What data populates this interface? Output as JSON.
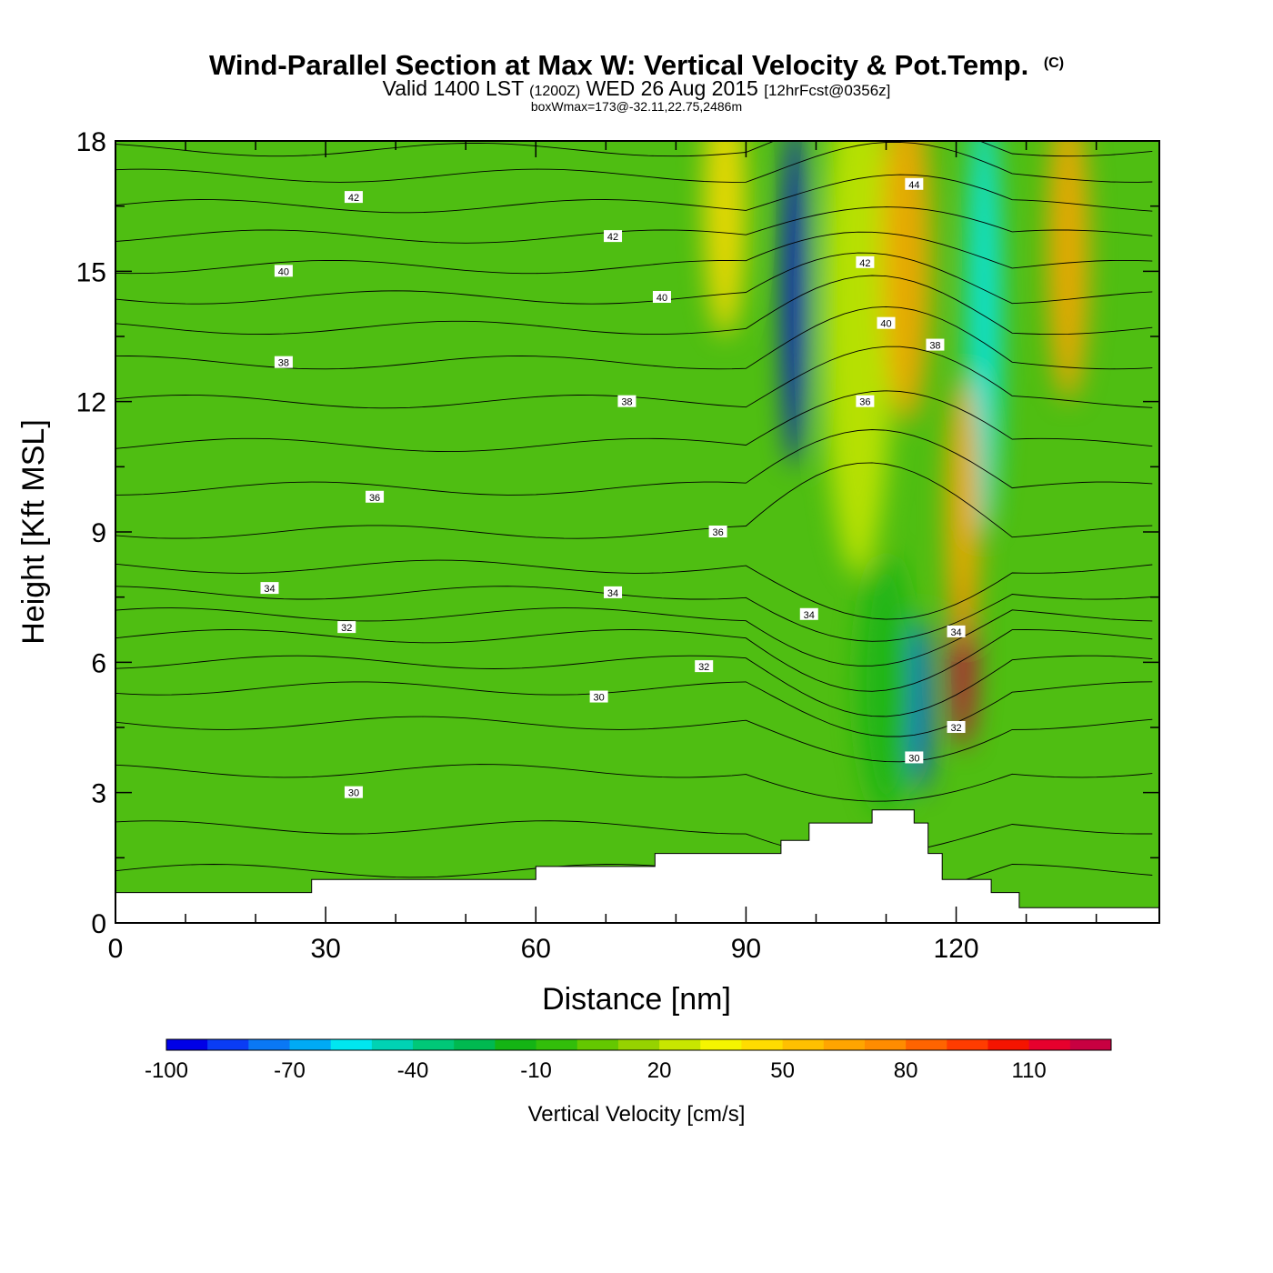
{
  "chart_data": {
    "type": "heatmap",
    "title": {
      "main": "Wind-Parallel Section at Max W: Vertical Velocity & Pot.Temp.",
      "copyright": "(C)",
      "valid_prefix": "Valid 1400 LST",
      "valid_zulu": "(1200Z)",
      "valid_date": "WED 26 Aug 2015",
      "forecast": "[12hrFcst@0356z]",
      "boxwmax": "boxWmax=173@-32.11,22.75,2486m"
    },
    "xlabel": "Distance [nm]",
    "ylabel": "Height [Kft MSL]",
    "xlim": [
      0,
      149
    ],
    "ylim": [
      0,
      18
    ],
    "x_ticks": [
      0,
      30,
      60,
      90,
      120
    ],
    "x_tick_labels": [
      "0",
      "30",
      "60",
      "90",
      "120"
    ],
    "y_ticks": [
      0,
      3,
      6,
      9,
      12,
      15,
      18
    ],
    "y_tick_labels": [
      "0",
      "3",
      "6",
      "9",
      "12",
      "15",
      "18"
    ],
    "colorbar": {
      "label": "Vertical Velocity [cm/s]",
      "levels": [
        -100,
        -90,
        -80,
        -70,
        -60,
        -50,
        -40,
        -30,
        -20,
        -10,
        0,
        10,
        20,
        30,
        40,
        50,
        60,
        70,
        80,
        90,
        100,
        110,
        120,
        130
      ],
      "tick_values": [
        -100,
        -70,
        -40,
        -10,
        20,
        50,
        80,
        110
      ],
      "tick_labels": [
        "-100",
        "-70",
        "-40",
        "-10",
        "20",
        "50",
        "80",
        "110"
      ],
      "colors": [
        "#0000e6",
        "#0a3cf5",
        "#0a78f5",
        "#00aaf5",
        "#00e6f0",
        "#00d2b4",
        "#00c878",
        "#00b950",
        "#14b414",
        "#32be0a",
        "#64c800",
        "#96d200",
        "#c8e600",
        "#f5f500",
        "#ffdc00",
        "#ffc000",
        "#ffa500",
        "#ff8c00",
        "#ff6400",
        "#ff3c00",
        "#f51400",
        "#e6002d",
        "#c80041"
      ]
    },
    "terrain_kft": [
      [
        0,
        0.7
      ],
      [
        28,
        0.7
      ],
      [
        28,
        1.0
      ],
      [
        60,
        1.0
      ],
      [
        60,
        1.3
      ],
      [
        77,
        1.3
      ],
      [
        77,
        1.6
      ],
      [
        95,
        1.6
      ],
      [
        95,
        1.9
      ],
      [
        99,
        1.9
      ],
      [
        99,
        2.3
      ],
      [
        108,
        2.3
      ],
      [
        108,
        2.6
      ],
      [
        114,
        2.6
      ],
      [
        114,
        2.3
      ],
      [
        116,
        2.3
      ],
      [
        116,
        1.6
      ],
      [
        118,
        1.6
      ],
      [
        118,
        1.0
      ],
      [
        125,
        1.0
      ],
      [
        125,
        0.7
      ],
      [
        129,
        0.7
      ],
      [
        129,
        0.35
      ],
      [
        149,
        0.35
      ]
    ],
    "velocity_features": [
      {
        "x": 97,
        "y": 14.5,
        "w_cm_s": -100,
        "half_width_nm": 1.8,
        "half_height_kft": 4.0
      },
      {
        "x": 106,
        "y": 14.0,
        "w_cm_s": 20,
        "half_width_nm": 5.0,
        "half_height_kft": 6.0
      },
      {
        "x": 113,
        "y": 15.5,
        "w_cm_s": 60,
        "half_width_nm": 3.5,
        "half_height_kft": 4.0
      },
      {
        "x": 124,
        "y": 14.0,
        "w_cm_s": -60,
        "half_width_nm": 2.5,
        "half_height_kft": 5.0
      },
      {
        "x": 136,
        "y": 15.5,
        "w_cm_s": 60,
        "half_width_nm": 3.0,
        "half_height_kft": 3.5
      },
      {
        "x": 121,
        "y": 6.0,
        "w_cm_s": 120,
        "half_width_nm": 1.8,
        "half_height_kft": 2.0
      },
      {
        "x": 121,
        "y": 9.5,
        "w_cm_s": 60,
        "half_width_nm": 2.5,
        "half_height_kft": 3.0
      },
      {
        "x": 115,
        "y": 5.0,
        "w_cm_s": -90,
        "half_width_nm": 1.5,
        "half_height_kft": 2.0
      },
      {
        "x": 110,
        "y": 5.5,
        "w_cm_s": -20,
        "half_width_nm": 4.0,
        "half_height_kft": 3.0
      },
      {
        "x": 87,
        "y": 16.5,
        "w_cm_s": 40,
        "half_width_nm": 3.0,
        "half_height_kft": 3.0
      }
    ],
    "theta_contour_labels": [
      {
        "x": 34,
        "y": 16.7,
        "text": "42"
      },
      {
        "x": 71,
        "y": 15.8,
        "text": "42"
      },
      {
        "x": 114,
        "y": 17.0,
        "text": "44"
      },
      {
        "x": 107,
        "y": 15.2,
        "text": "42"
      },
      {
        "x": 24,
        "y": 15.0,
        "text": "40"
      },
      {
        "x": 78,
        "y": 14.4,
        "text": "40"
      },
      {
        "x": 110,
        "y": 13.8,
        "text": "40"
      },
      {
        "x": 117,
        "y": 13.3,
        "text": "38"
      },
      {
        "x": 24,
        "y": 12.9,
        "text": "38"
      },
      {
        "x": 73,
        "y": 12.0,
        "text": "38"
      },
      {
        "x": 107,
        "y": 12.0,
        "text": "36"
      },
      {
        "x": 37,
        "y": 9.8,
        "text": "36"
      },
      {
        "x": 86,
        "y": 9.0,
        "text": "36"
      },
      {
        "x": 22,
        "y": 7.7,
        "text": "34"
      },
      {
        "x": 71,
        "y": 7.6,
        "text": "34"
      },
      {
        "x": 99,
        "y": 7.1,
        "text": "34"
      },
      {
        "x": 120,
        "y": 6.7,
        "text": "34"
      },
      {
        "x": 33,
        "y": 6.8,
        "text": "32"
      },
      {
        "x": 84,
        "y": 5.9,
        "text": "32"
      },
      {
        "x": 120,
        "y": 4.5,
        "text": "32"
      },
      {
        "x": 69,
        "y": 5.2,
        "text": "30"
      },
      {
        "x": 114,
        "y": 3.8,
        "text": "30"
      },
      {
        "x": 34,
        "y": 3.0,
        "text": "30"
      }
    ]
  }
}
